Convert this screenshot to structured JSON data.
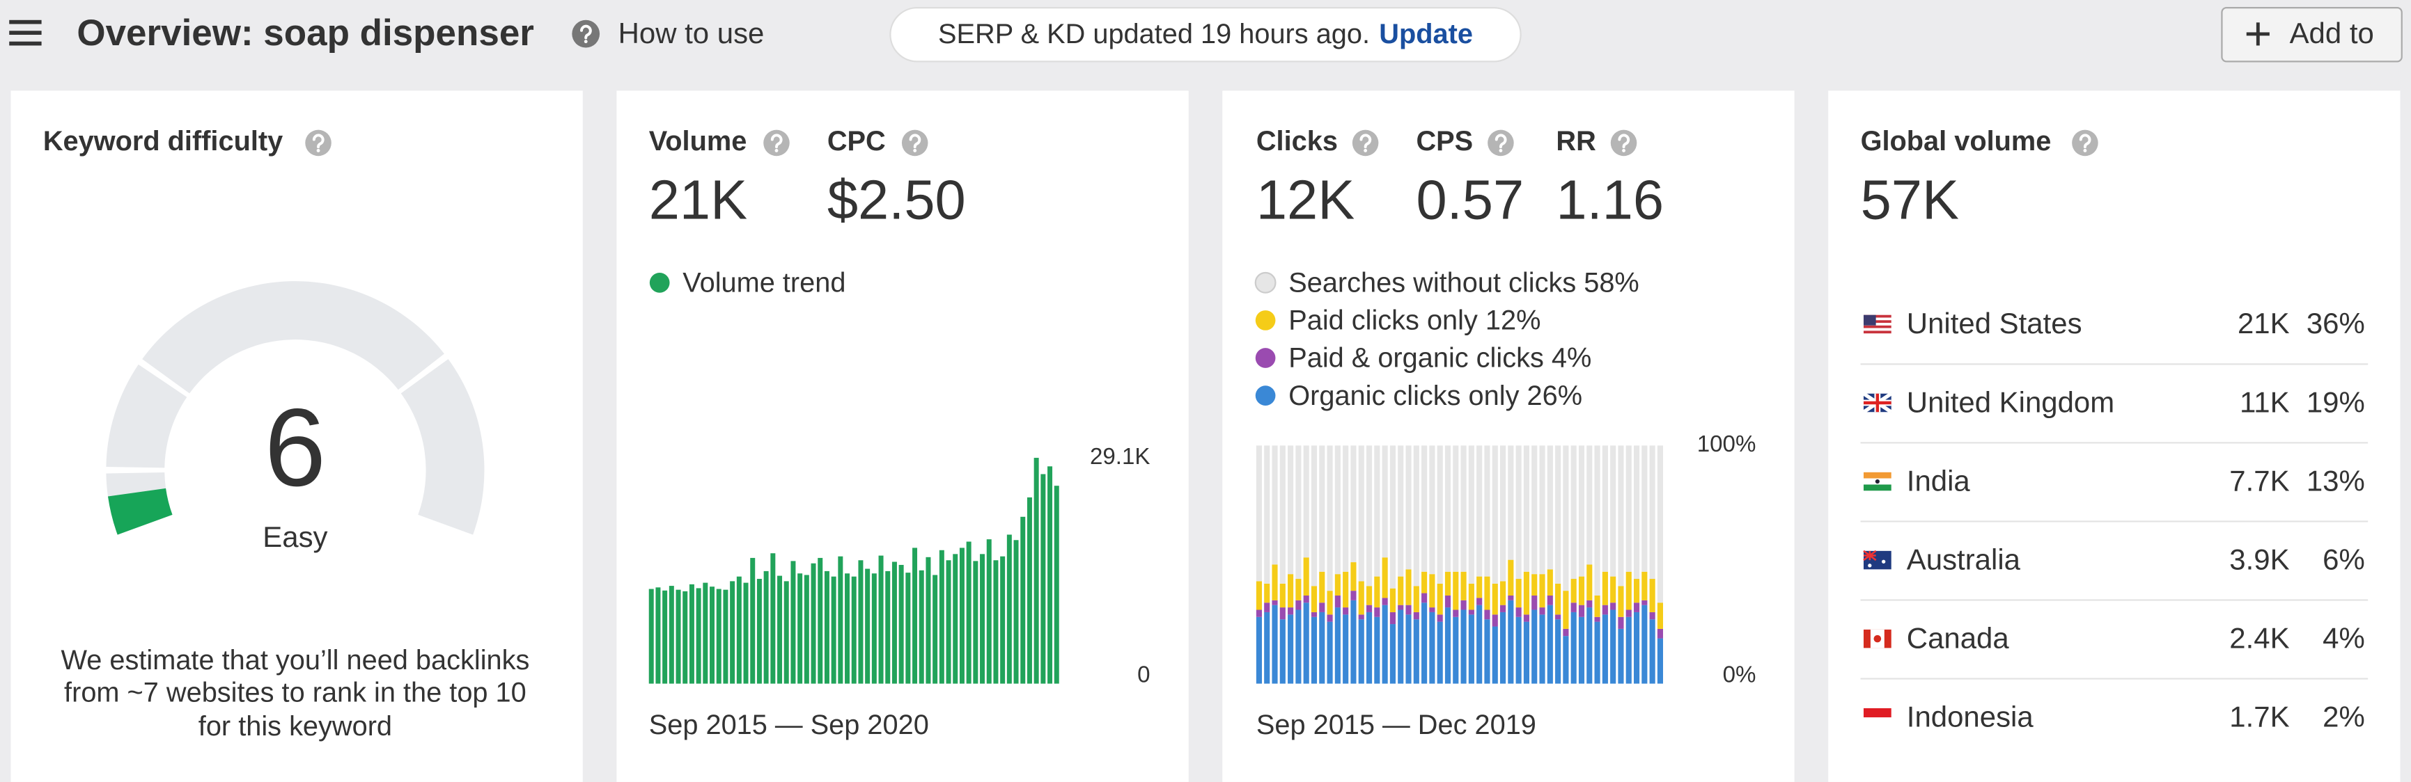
{
  "header": {
    "title": "Overview: soap dispenser",
    "help": "How to use",
    "status": "SERP & KD updated 19 hours ago.",
    "status_action": "Update",
    "button": "Add to"
  },
  "difficulty": {
    "title": "Keyword difficulty",
    "score": 6,
    "rating": "Easy",
    "note": [
      "We estimate that you’ll need backlinks",
      "from ~7 websites to rank in the top 10",
      "for this keyword"
    ]
  },
  "volume_card": {
    "metrics": [
      {
        "label": "Volume",
        "value": "21K"
      },
      {
        "label": "CPC",
        "value": "$2.50"
      }
    ],
    "x_range": "Sep 2015 — Sep 2020"
  },
  "clicks_card": {
    "metrics": [
      {
        "label": "Clicks",
        "value": "12K"
      },
      {
        "label": "CPS",
        "value": "0.57"
      },
      {
        "label": "RR",
        "value": "1.16"
      }
    ],
    "x_range": "Sep 2015 — Dec 2019"
  },
  "global": {
    "title": "Global volume",
    "total": "57K",
    "countries": [
      {
        "name": "United States",
        "volume": "21K",
        "share": "36%"
      },
      {
        "name": "United Kingdom",
        "volume": "11K",
        "share": "19%"
      },
      {
        "name": "India",
        "volume": "7.7K",
        "share": "13%"
      },
      {
        "name": "Australia",
        "volume": "3.9K",
        "share": "6%"
      },
      {
        "name": "Canada",
        "volume": "2.4K",
        "share": "4%"
      },
      {
        "name": "Indonesia",
        "volume": "1.7K",
        "share": "2%"
      }
    ]
  },
  "chart_data": [
    {
      "type": "bar",
      "ylim": [
        0,
        29100
      ],
      "yticks": [
        0,
        {
          "value": 29100,
          "label": "29.1K"
        }
      ],
      "series": [
        {
          "name": "Volume trend",
          "color": "#21a35a",
          "values": [
            12200,
            12400,
            12000,
            12600,
            12100,
            11900,
            12800,
            12300,
            13000,
            12500,
            12200,
            12100,
            13200,
            13800,
            13000,
            16200,
            13500,
            14500,
            16800,
            13900,
            13200,
            15800,
            14200,
            14000,
            15500,
            16200,
            14500,
            13800,
            16400,
            14200,
            13800,
            15900,
            14800,
            14200,
            16500,
            14500,
            15700,
            15300,
            14300,
            17500,
            14600,
            16300,
            14000,
            17200,
            15900,
            16700,
            17500,
            18300,
            15800,
            16700,
            18600,
            15900,
            16400,
            19200,
            18500,
            21500,
            24000,
            29100,
            27000,
            28000,
            25500
          ]
        }
      ]
    },
    {
      "type": "stacked_bar",
      "ylim": [
        0,
        100
      ],
      "yticks": [
        {
          "value": 0,
          "label": "0%"
        },
        {
          "value": 100,
          "label": "100%"
        }
      ],
      "series": [
        {
          "name": "Searches without clicks",
          "share_label": "58%",
          "color": "#e6e6e6",
          "values": [
            57,
            58,
            50,
            58,
            54,
            56,
            47,
            59,
            53,
            61,
            54,
            53,
            49,
            57,
            59,
            55,
            47,
            60,
            55,
            52,
            59,
            53,
            54,
            58,
            53,
            53,
            53,
            58,
            55,
            55,
            58,
            57,
            48,
            56,
            53,
            54,
            54,
            52,
            58,
            61,
            56,
            55,
            50,
            63,
            53,
            55,
            59,
            53,
            56,
            53,
            56,
            66
          ]
        },
        {
          "name": "Paid clicks only",
          "share_label": "12%",
          "color": "#f5cc18",
          "values": [
            12,
            8,
            15,
            10,
            14,
            9,
            16,
            11,
            13,
            10,
            9,
            15,
            12,
            14,
            8,
            13,
            17,
            10,
            12,
            15,
            11,
            9,
            14,
            13,
            10,
            16,
            12,
            11,
            9,
            14,
            13,
            10,
            15,
            12,
            18,
            9,
            14,
            11,
            13,
            16,
            10,
            12,
            15,
            9,
            14,
            11,
            13,
            16,
            10,
            12,
            14,
            11
          ]
        },
        {
          "name": "Paid & organic clicks",
          "share_label": "4%",
          "color": "#9a4bb0",
          "values": [
            3,
            4,
            2,
            5,
            3,
            4,
            3,
            2,
            4,
            3,
            5,
            3,
            4,
            2,
            3,
            4,
            3,
            5,
            2,
            4,
            3,
            4,
            2,
            3,
            5,
            3,
            4,
            2,
            3,
            4,
            5,
            3,
            2,
            4,
            3,
            6,
            3,
            4,
            2,
            3,
            4,
            5,
            3,
            2,
            4,
            3,
            5,
            3,
            4,
            2,
            3,
            4
          ]
        },
        {
          "name": "Organic clicks only",
          "share_label": "26%",
          "color": "#3a88d6",
          "values": [
            28,
            30,
            33,
            27,
            29,
            31,
            34,
            28,
            30,
            26,
            32,
            29,
            35,
            27,
            30,
            28,
            33,
            25,
            31,
            29,
            27,
            34,
            30,
            26,
            32,
            28,
            31,
            29,
            33,
            27,
            24,
            30,
            35,
            28,
            26,
            31,
            29,
            33,
            27,
            20,
            30,
            28,
            32,
            26,
            29,
            31,
            23,
            28,
            30,
            33,
            27,
            19
          ]
        }
      ]
    }
  ]
}
